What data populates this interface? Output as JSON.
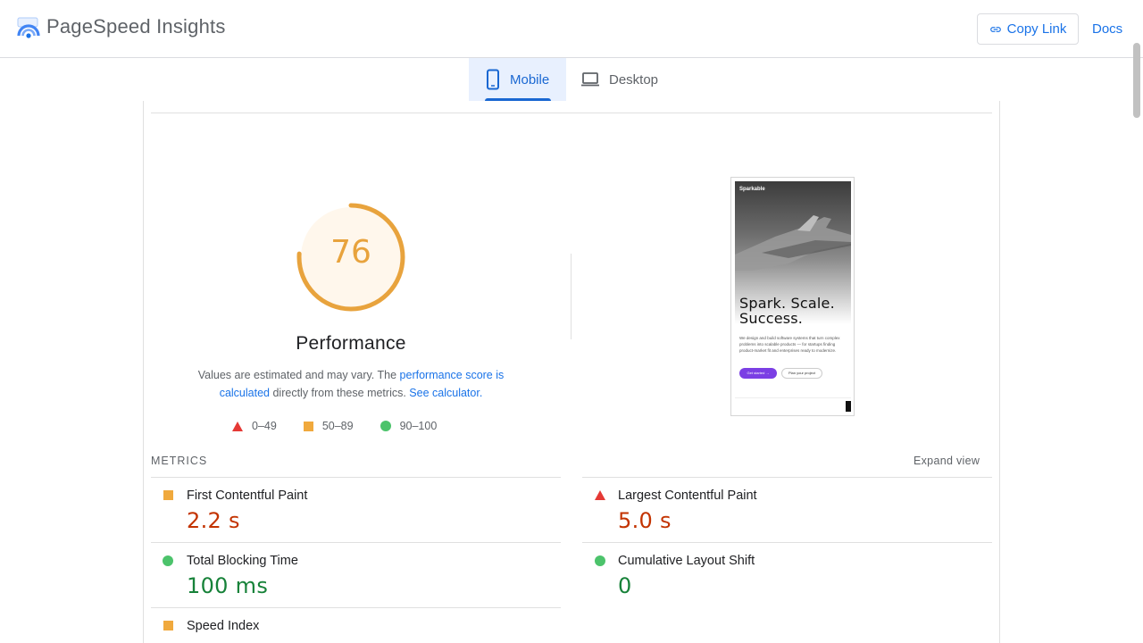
{
  "header": {
    "app_title": "PageSpeed Insights",
    "copy_link_label": "Copy Link",
    "docs_label": "Docs"
  },
  "tabs": [
    {
      "label": "Mobile",
      "active": true
    },
    {
      "label": "Desktop",
      "active": false
    }
  ],
  "performance": {
    "score": "76",
    "score_value": 76,
    "title": "Performance",
    "desc_part1": "Values are estimated and may vary. The ",
    "desc_link1": "performance score is calculated",
    "desc_part2": " directly from these metrics. ",
    "desc_link2": "See calculator.",
    "legend": [
      {
        "label": "0–49",
        "icon": "red-triangle-icon"
      },
      {
        "label": "50–89",
        "icon": "orange-square-icon"
      },
      {
        "label": "90–100",
        "icon": "green-circle-icon"
      }
    ],
    "colors": {
      "average": "#e8a33d",
      "average_bg": "#fff7ec",
      "fail": "#e53935",
      "pass": "#4cc36b"
    }
  },
  "screenshot": {
    "brand": "Sparkable",
    "headline_line1": "Spark. Scale.",
    "headline_line2": "Success.",
    "body": "We design and build software systems that turn complex problems into scalable products — for startups finding product-market fit and enterprises ready to modernize.",
    "primary_cta": "Get started →",
    "secondary_cta": "Plan your project"
  },
  "metrics": {
    "section_title": "METRICS",
    "expand_label": "Expand view",
    "items": [
      {
        "label": "First Contentful Paint",
        "value": "2.2 s",
        "rating": "average"
      },
      {
        "label": "Largest Contentful Paint",
        "value": "5.0 s",
        "rating": "fail"
      },
      {
        "label": "Total Blocking Time",
        "value": "100 ms",
        "rating": "pass"
      },
      {
        "label": "Cumulative Layout Shift",
        "value": "0",
        "rating": "pass"
      },
      {
        "label": "Speed Index",
        "value": "",
        "rating": "average"
      }
    ]
  }
}
